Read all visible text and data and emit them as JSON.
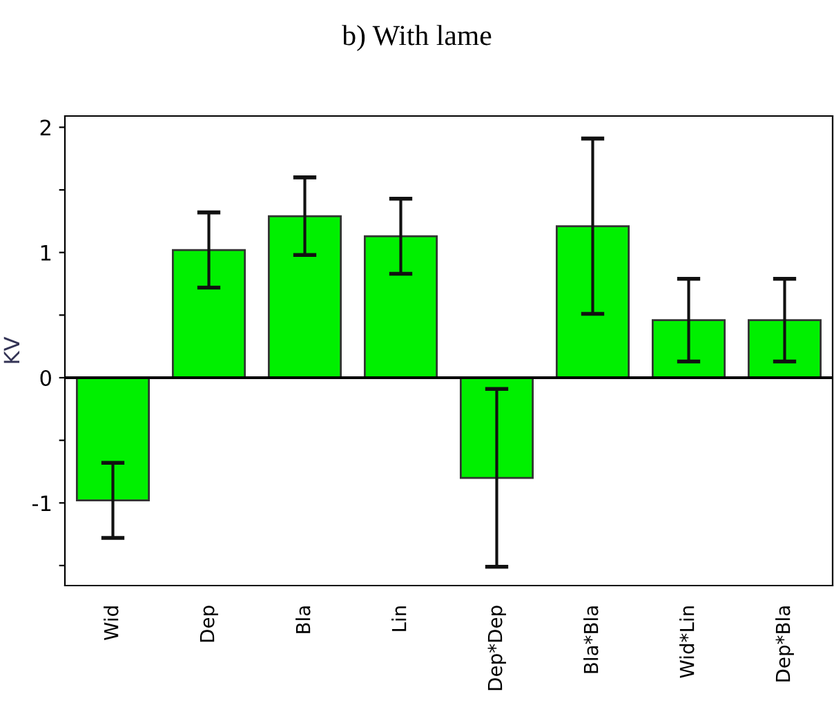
{
  "chart_data": {
    "type": "bar",
    "title": "b) With lame",
    "ylabel": "KV",
    "categories": [
      "Wid",
      "Dep",
      "Bla",
      "Lin",
      "Dep*Dep",
      "Bla*Bla",
      "Wid*Lin",
      "Dep*Bla"
    ],
    "values": [
      -0.98,
      1.02,
      1.29,
      1.13,
      -0.8,
      1.21,
      0.46,
      0.46
    ],
    "errors": [
      0.3,
      0.3,
      0.31,
      0.3,
      0.71,
      0.7,
      0.33,
      0.33
    ],
    "color": "#00f000",
    "ylim": [
      -1.66,
      2.09
    ],
    "yticks": [
      {
        "value": -1.5,
        "label": null
      },
      -1,
      {
        "value": -0.5,
        "label": null
      },
      0,
      {
        "value": 0.5,
        "label": null
      },
      1,
      {
        "value": 1.5,
        "label": null
      },
      2
    ],
    "ref_lines": [
      {
        "axis": "y",
        "value": 0,
        "color": "#000000"
      }
    ],
    "grid": false
  }
}
